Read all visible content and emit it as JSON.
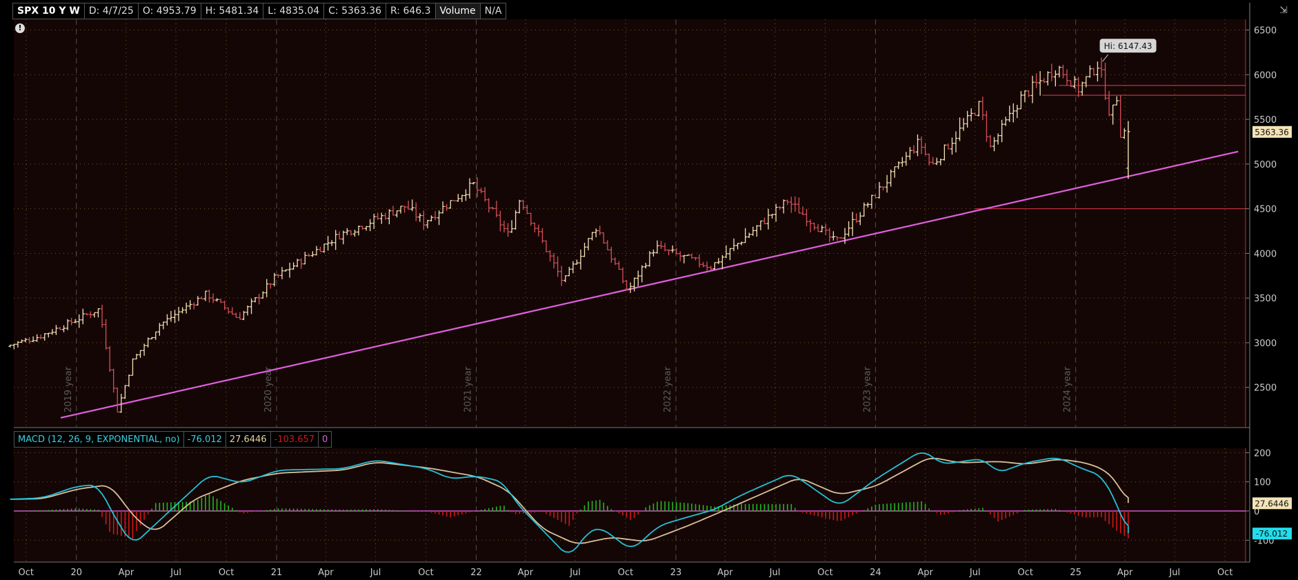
{
  "header": {
    "symbol": "SPX 10 Y W",
    "date": "D: 4/7/25",
    "open": "O: 4953.79",
    "high": "H: 5481.34",
    "low": "L: 4835.04",
    "close": "C: 5363.36",
    "range": "R: 646.3",
    "volume_label": "Volume",
    "volume_value": "N/A"
  },
  "macd_header": {
    "name": "MACD (12, 26, 9, EXPONENTIAL, no)",
    "value": "-76.012",
    "avg": "27.6446",
    "diff": "-103.657",
    "zero": "0"
  },
  "colors": {
    "background": "#150606",
    "up_bar": "#f3e3b6",
    "down_bar": "#d8505a",
    "trendline": "#e060e0",
    "level_line": "#c0323a",
    "macd_value": "#22c2d6",
    "macd_avg": "#d9c09a",
    "hist_up": "#22b820",
    "hist_down": "#d01818",
    "axis_red": "#c03038",
    "grid_vert": "#555555",
    "grid_h": "#b8a040"
  },
  "chart_data": [
    {
      "type": "ohlc",
      "title": "SPX 10 Y W",
      "price_axis_ticks": [
        2500,
        3000,
        3500,
        4000,
        4500,
        5000,
        5500,
        6000,
        6500
      ],
      "ylim": [
        2050,
        6620
      ],
      "x_month_labels": [
        "Oct",
        "20",
        "Apr",
        "Jul",
        "Oct",
        "21",
        "Apr",
        "Jul",
        "Oct",
        "22",
        "Apr",
        "Jul",
        "Oct",
        "23",
        "Apr",
        "Jul",
        "Oct",
        "24",
        "Apr",
        "Jul",
        "Oct",
        "25",
        "Apr",
        "Jul",
        "Oct"
      ],
      "year_separators": [
        "2019 year",
        "2020 year",
        "2021 year",
        "2022 year",
        "2023 year",
        "2024 year"
      ],
      "price_anchors": [
        {
          "date": "2019-09-02",
          "close": 2960
        },
        {
          "date": "2019-11-01",
          "close": 3070
        },
        {
          "date": "2020-01-02",
          "close": 3240
        },
        {
          "date": "2020-02-19",
          "close": 3380
        },
        {
          "date": "2020-03-23",
          "close": 2240
        },
        {
          "date": "2020-04-20",
          "close": 2800
        },
        {
          "date": "2020-06-08",
          "close": 3200
        },
        {
          "date": "2020-09-02",
          "close": 3550
        },
        {
          "date": "2020-10-30",
          "close": 3270
        },
        {
          "date": "2021-01-04",
          "close": 3720
        },
        {
          "date": "2021-05-01",
          "close": 4200
        },
        {
          "date": "2021-09-01",
          "close": 4530
        },
        {
          "date": "2021-10-04",
          "close": 4350
        },
        {
          "date": "2022-01-03",
          "close": 4770
        },
        {
          "date": "2022-03-08",
          "close": 4200
        },
        {
          "date": "2022-03-29",
          "close": 4620
        },
        {
          "date": "2022-06-16",
          "close": 3670
        },
        {
          "date": "2022-08-16",
          "close": 4300
        },
        {
          "date": "2022-10-12",
          "close": 3580
        },
        {
          "date": "2022-12-01",
          "close": 4070
        },
        {
          "date": "2023-03-13",
          "close": 3850
        },
        {
          "date": "2023-07-31",
          "close": 4590
        },
        {
          "date": "2023-10-27",
          "close": 4120
        },
        {
          "date": "2024-03-28",
          "close": 5250
        },
        {
          "date": "2024-04-19",
          "close": 4970
        },
        {
          "date": "2024-07-16",
          "close": 5660
        },
        {
          "date": "2024-08-05",
          "close": 5180
        },
        {
          "date": "2024-10-01",
          "close": 5750
        },
        {
          "date": "2024-12-06",
          "close": 6090
        },
        {
          "date": "2025-01-13",
          "close": 5840
        },
        {
          "date": "2025-02-19",
          "close": 6130
        },
        {
          "date": "2025-03-13",
          "close": 5520
        },
        {
          "date": "2025-03-25",
          "close": 5770
        },
        {
          "date": "2025-04-04",
          "close": 5074
        },
        {
          "date": "2025-04-07",
          "close": 5363.36
        }
      ],
      "last_bar": {
        "date": "2025-04-07",
        "open": 4953.79,
        "high": 5481.34,
        "low": 4835.04,
        "close": 5363.36
      },
      "high_label": "Hi: 6147.43",
      "high_value": 6147.43,
      "last_price_label": "5363.36",
      "trendline": {
        "from": {
          "date": "2019-09-01",
          "price": 2030
        },
        "to": {
          "date": "2025-10-25",
          "price": 5140
        }
      },
      "horizontal_levels": [
        {
          "price": 5880,
          "from": "2024-12-01"
        },
        {
          "price": 5770,
          "from": "2024-11-01"
        },
        {
          "price": 4500,
          "from": "2024-07-01"
        }
      ]
    },
    {
      "type": "macd",
      "title": "MACD (12, 26, 9, EXPONENTIAL, no)",
      "yticks": [
        -100,
        0,
        100,
        200
      ],
      "ylim": [
        -175,
        215
      ],
      "value_label": "-76.012",
      "avg_label": "27.6446",
      "diff_label": "-103.657",
      "macd_value": [
        [
          "2019-09-02",
          40
        ],
        [
          "2019-11-01",
          45
        ],
        [
          "2020-01-02",
          85
        ],
        [
          "2020-02-10",
          90
        ],
        [
          "2020-03-09",
          -15
        ],
        [
          "2020-04-13",
          -118
        ],
        [
          "2020-06-08",
          -20
        ],
        [
          "2020-08-31",
          125
        ],
        [
          "2020-10-30",
          95
        ],
        [
          "2021-01-04",
          140
        ],
        [
          "2021-05-03",
          145
        ],
        [
          "2021-07-01",
          175
        ],
        [
          "2021-10-04",
          145
        ],
        [
          "2021-11-15",
          110
        ],
        [
          "2022-01-03",
          120
        ],
        [
          "2022-02-20",
          100
        ],
        [
          "2022-03-14",
          30
        ],
        [
          "2022-06-20",
          -160
        ],
        [
          "2022-07-25",
          -70
        ],
        [
          "2022-08-16",
          -55
        ],
        [
          "2022-10-12",
          -135
        ],
        [
          "2022-12-01",
          -50
        ],
        [
          "2023-01-24",
          -20
        ],
        [
          "2023-03-13",
          5
        ],
        [
          "2023-05-01",
          55
        ],
        [
          "2023-07-31",
          130
        ],
        [
          "2023-10-27",
          15
        ],
        [
          "2024-01-02",
          110
        ],
        [
          "2024-03-28",
          210
        ],
        [
          "2024-05-01",
          160
        ],
        [
          "2024-07-16",
          180
        ],
        [
          "2024-08-12",
          130
        ],
        [
          "2024-10-01",
          165
        ],
        [
          "2024-11-29",
          185
        ],
        [
          "2025-01-06",
          150
        ],
        [
          "2025-02-19",
          120
        ],
        [
          "2025-03-17",
          25
        ],
        [
          "2025-04-07",
          -76.012
        ]
      ],
      "macd_avg": [
        [
          "2019-09-02",
          40
        ],
        [
          "2019-11-01",
          42
        ],
        [
          "2020-01-02",
          75
        ],
        [
          "2020-03-02",
          90
        ],
        [
          "2020-04-20",
          -30
        ],
        [
          "2020-05-25",
          -75
        ],
        [
          "2020-08-03",
          40
        ],
        [
          "2020-10-30",
          105
        ],
        [
          "2021-01-04",
          130
        ],
        [
          "2021-05-03",
          140
        ],
        [
          "2021-07-01",
          168
        ],
        [
          "2021-10-04",
          148
        ],
        [
          "2022-01-03",
          118
        ],
        [
          "2022-03-01",
          70
        ],
        [
          "2022-05-01",
          -60
        ],
        [
          "2022-07-04",
          -115
        ],
        [
          "2022-09-05",
          -90
        ],
        [
          "2022-11-08",
          -105
        ],
        [
          "2023-01-24",
          -50
        ],
        [
          "2023-04-03",
          5
        ],
        [
          "2023-08-14",
          115
        ],
        [
          "2023-10-27",
          55
        ],
        [
          "2024-01-02",
          85
        ],
        [
          "2024-04-09",
          185
        ],
        [
          "2024-06-03",
          165
        ],
        [
          "2024-08-15",
          170
        ],
        [
          "2024-10-01",
          160
        ],
        [
          "2024-12-02",
          178
        ],
        [
          "2025-01-20",
          165
        ],
        [
          "2025-02-24",
          140
        ],
        [
          "2025-03-17",
          100
        ],
        [
          "2025-04-07",
          27.6446
        ]
      ]
    }
  ]
}
